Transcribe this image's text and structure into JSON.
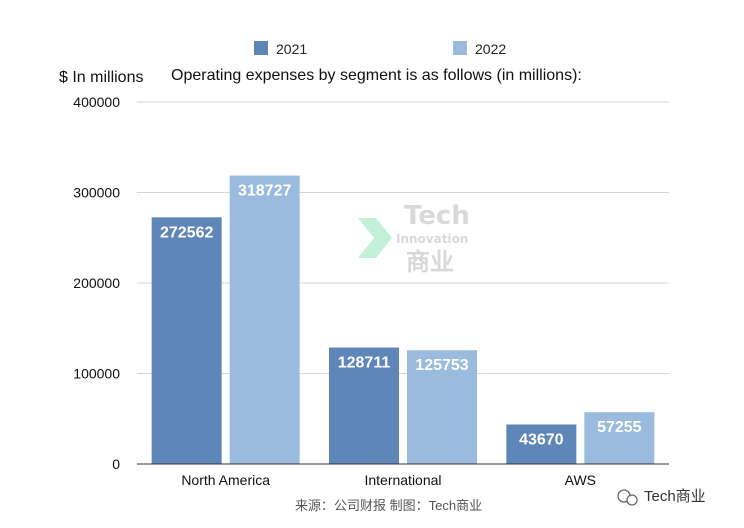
{
  "chart_data": {
    "type": "bar",
    "title": "Operating expenses by segment is as follows (in millions):",
    "ylabel": "$ In millions",
    "xlabel": "",
    "categories": [
      "North America",
      "International",
      "AWS"
    ],
    "series": [
      {
        "name": "2021",
        "values": [
          272562,
          128711,
          43670
        ],
        "color": "#5f86b9"
      },
      {
        "name": "2022",
        "values": [
          318727,
          125753,
          57255
        ],
        "color": "#9abbdd"
      }
    ],
    "ylim": [
      0,
      400000
    ],
    "yticks": [
      0,
      100000,
      200000,
      300000,
      400000
    ],
    "grid": true,
    "legend_position": "top-center"
  },
  "watermark": {
    "tech": "Tech",
    "innovation": "Innovation",
    "cn": "商业"
  },
  "footer": {
    "source": "来源：公司财报 制图：Tech商业",
    "brand": "Tech商业"
  }
}
